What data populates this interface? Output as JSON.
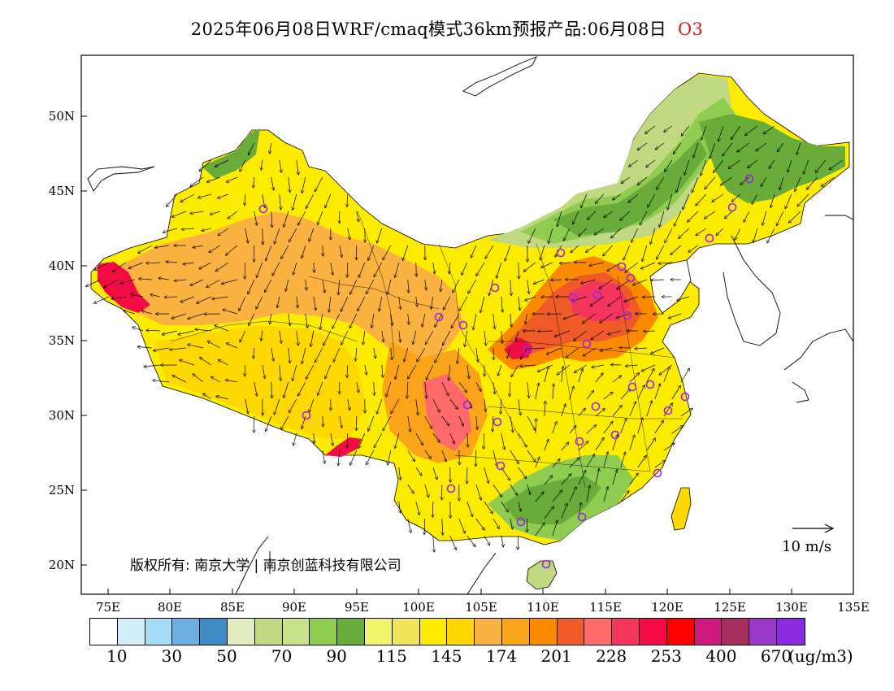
{
  "title": {
    "text": "2025年06月08日WRF/cmaq模式36km预报产品:06月08日",
    "species": "O3"
  },
  "latitude_labels": [
    "50N",
    "45N",
    "40N",
    "35N",
    "30N",
    "25N",
    "20N"
  ],
  "longitude_labels": [
    "75E",
    "80E",
    "85E",
    "90E",
    "95E",
    "100E",
    "105E",
    "110E",
    "115E",
    "120E",
    "125E",
    "130E",
    "135E"
  ],
  "colorbar": {
    "colors": [
      "#ffffff",
      "#d4eefb",
      "#a6dcf5",
      "#6bb0e0",
      "#3e8bc6",
      "#e2ebc0",
      "#c0d87f",
      "#c8e287",
      "#90cc50",
      "#6aac39",
      "#f2f56a",
      "#f2e45a",
      "#fdeb00",
      "#fed800",
      "#fbb240",
      "#faa41a",
      "#fb8a00",
      "#ef5a28",
      "#fe6a6a",
      "#f5365c",
      "#f20b45",
      "#ff0000",
      "#cc1b7d",
      "#a62e5f",
      "#9a38c8",
      "#8a2be2"
    ],
    "labels": [
      "10",
      "30",
      "50",
      "70",
      "90",
      "115",
      "145",
      "174",
      "201",
      "228",
      "253",
      "400",
      "670"
    ],
    "unit": "(ug/m3)"
  },
  "copyright": "版权所有: 南京大学 | 南京创蓝科技有限公司",
  "wind_reference": "10 m/s",
  "map_palette": {
    "ocean": "#ffffff",
    "forest_green": "#6aac39",
    "light_green": "#90cc50",
    "pale_green": "#c0d87f",
    "yellow": "#fdeb00",
    "gold": "#fed800",
    "light_orange": "#fbb240",
    "orange": "#faa41a",
    "dark_orange": "#fb8a00",
    "red_orange": "#ef5a28",
    "pink_red": "#fe6a6a",
    "crimson": "#f20b45",
    "station_marker": "#a020f0"
  }
}
